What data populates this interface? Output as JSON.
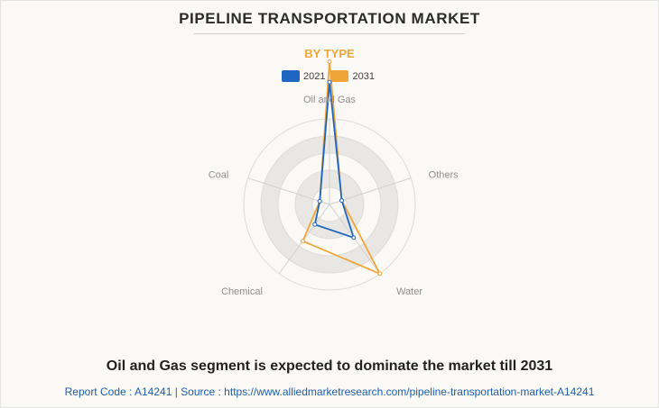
{
  "header": {
    "title": "PIPELINE TRANSPORTATION MARKET",
    "subtitle": "BY TYPE"
  },
  "chart_data": {
    "type": "radar",
    "title": "PIPELINE TRANSPORTATION MARKET",
    "subtitle": "BY TYPE",
    "categories": [
      "Oil and Gas",
      "Others",
      "Water",
      "Chemical",
      "Coal"
    ],
    "series": [
      {
        "name": "2021",
        "color": "#1f66c1",
        "values": [
          143,
          15,
          48,
          29,
          12
        ]
      },
      {
        "name": "2031",
        "color": "#f0a53a",
        "values": [
          167,
          15,
          100,
          53,
          12
        ]
      }
    ],
    "rlim": [
      0,
      100
    ],
    "grid": true,
    "legend_position": "top-center"
  },
  "footer": {
    "headline": "Oil and Gas segment is expected to dominate the market till 2031",
    "source": "Report Code : A14241  |  Source : https://www.alliedmarketresearch.com/pipeline-transportation-market-A14241"
  }
}
